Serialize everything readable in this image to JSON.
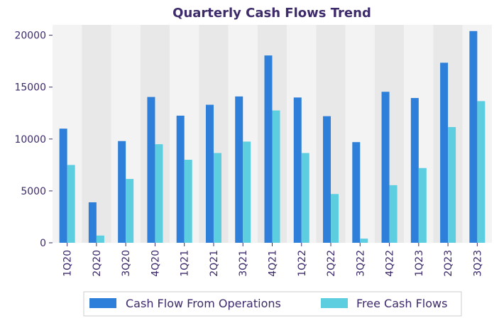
{
  "chart_data": {
    "type": "bar",
    "title": "Quarterly Cash Flows Trend",
    "xlabel": "",
    "ylabel": "",
    "categories": [
      "1Q20",
      "2Q20",
      "3Q20",
      "4Q20",
      "1Q21",
      "2Q21",
      "3Q21",
      "4Q21",
      "1Q22",
      "2Q22",
      "3Q22",
      "4Q22",
      "1Q23",
      "2Q23",
      "3Q23"
    ],
    "series": [
      {
        "name": "Cash Flow From Operations",
        "color": "#2e7fd9",
        "values": [
          11000,
          3900,
          9800,
          14050,
          12250,
          13300,
          14100,
          18050,
          14000,
          12200,
          9700,
          14550,
          13950,
          17350,
          20400
        ]
      },
      {
        "name": "Free Cash Flows",
        "color": "#5dcde0",
        "values": [
          7500,
          700,
          6150,
          9500,
          8000,
          8650,
          9750,
          12750,
          8650,
          4700,
          400,
          5550,
          7200,
          11150,
          13650
        ]
      }
    ],
    "yticks": [
      0,
      5000,
      10000,
      15000,
      20000
    ],
    "ylim": [
      0,
      21000
    ],
    "band_colors": [
      "#f3f3f4",
      "#e8e8e9"
    ],
    "legend_position": "bottom"
  }
}
